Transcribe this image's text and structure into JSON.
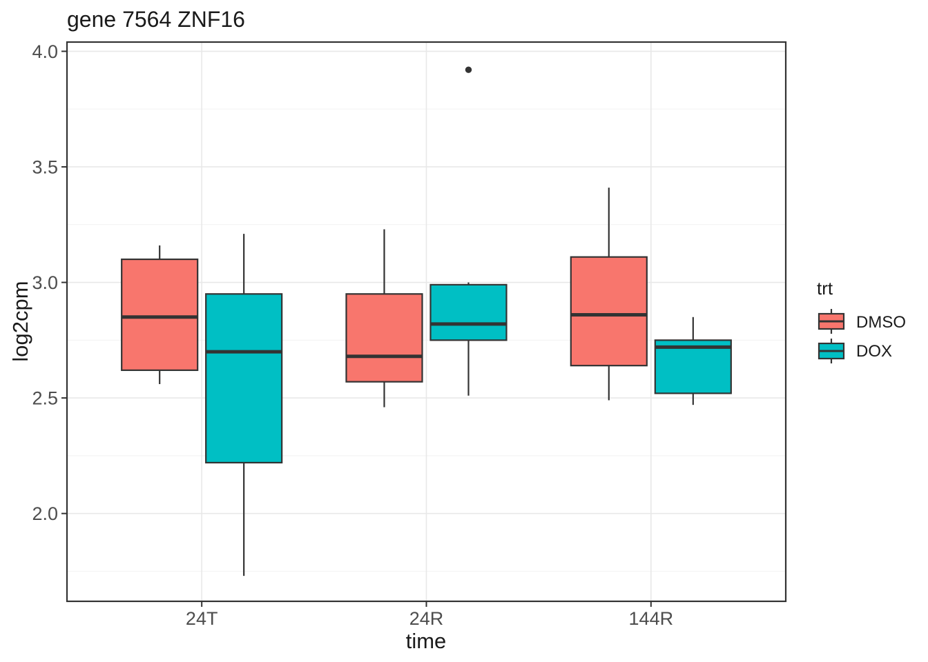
{
  "chart_data": {
    "type": "boxplot",
    "title": "gene 7564 ZNF16",
    "xlabel": "time",
    "ylabel": "log2cpm",
    "categories": [
      "24T",
      "24R",
      "144R"
    ],
    "y_ticks": [
      {
        "value": 2.0,
        "label": "2.0"
      },
      {
        "value": 2.5,
        "label": "2.5"
      },
      {
        "value": 3.0,
        "label": "3.0"
      },
      {
        "value": 3.5,
        "label": "3.5"
      },
      {
        "value": 4.0,
        "label": "4.0"
      }
    ],
    "y_minor_ticks": [
      1.75,
      2.25,
      2.75,
      3.25,
      3.75
    ],
    "ylim": [
      1.62,
      4.04
    ],
    "grid": true,
    "legend": {
      "title": "trt",
      "position": "right",
      "entries": [
        {
          "label": "DMSO",
          "color": "#F8766D"
        },
        {
          "label": "DOX",
          "color": "#00BFC4"
        }
      ]
    },
    "series": [
      {
        "name": "DMSO",
        "color": "#F8766D",
        "boxes": [
          {
            "category": "24T",
            "whisker_low": 2.56,
            "q1": 2.62,
            "median": 2.85,
            "q3": 3.1,
            "whisker_high": 3.16,
            "outliers": []
          },
          {
            "category": "24R",
            "whisker_low": 2.46,
            "q1": 2.57,
            "median": 2.68,
            "q3": 2.95,
            "whisker_high": 3.23,
            "outliers": []
          },
          {
            "category": "144R",
            "whisker_low": 2.49,
            "q1": 2.64,
            "median": 2.86,
            "q3": 3.11,
            "whisker_high": 3.41,
            "outliers": []
          }
        ]
      },
      {
        "name": "DOX",
        "color": "#00BFC4",
        "boxes": [
          {
            "category": "24T",
            "whisker_low": 1.73,
            "q1": 2.22,
            "median": 2.7,
            "q3": 2.95,
            "whisker_high": 3.21,
            "outliers": []
          },
          {
            "category": "24R",
            "whisker_low": 2.51,
            "q1": 2.75,
            "median": 2.82,
            "q3": 2.99,
            "whisker_high": 3.0,
            "outliers": [
              3.92
            ]
          },
          {
            "category": "144R",
            "whisker_low": 2.47,
            "q1": 2.52,
            "median": 2.72,
            "q3": 2.75,
            "whisker_high": 2.85,
            "outliers": []
          }
        ]
      }
    ],
    "style_colors": {
      "box_stroke": "#333333",
      "panel_border": "#333333",
      "grid_major": "#e8e8e8",
      "grid_minor": "#f2f2f2",
      "tick_mark": "#333333",
      "outlier": "#333333"
    }
  }
}
